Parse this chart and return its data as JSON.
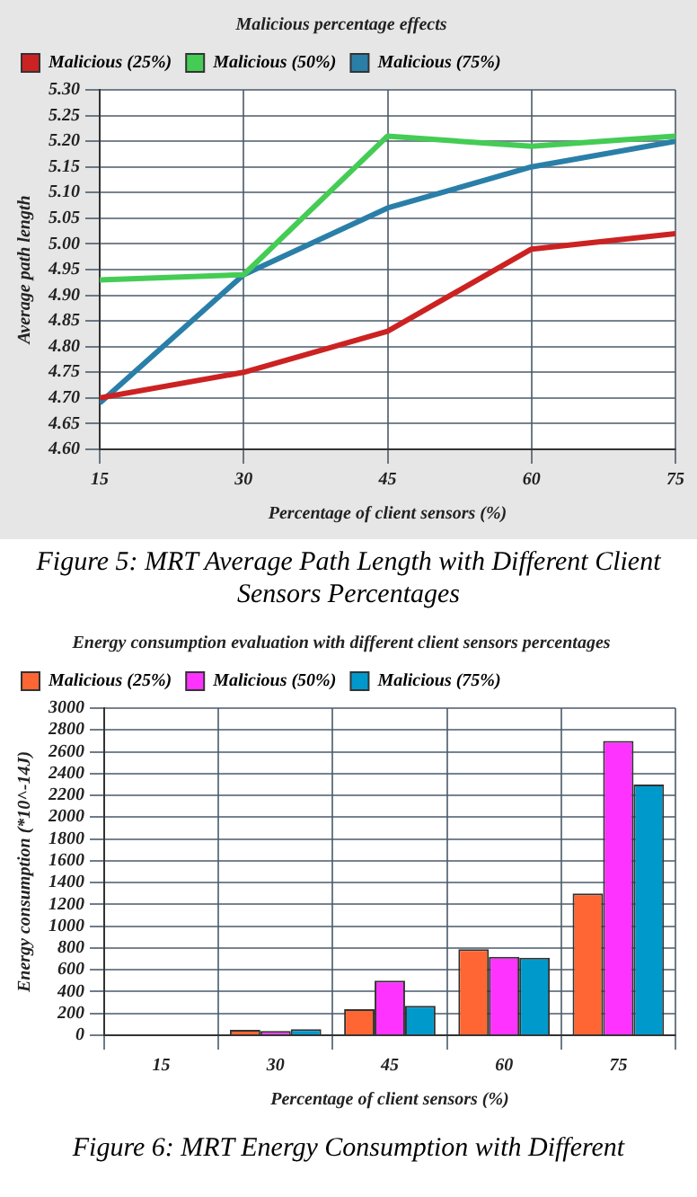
{
  "chart_data": [
    {
      "type": "line",
      "title": "Malicious percentage effects",
      "xlabel": "Percentage of client sensors (%)",
      "ylabel": "Average path length",
      "x": [
        15,
        30,
        45,
        60,
        75
      ],
      "xlim": [
        15,
        75
      ],
      "xticks": [
        15,
        30,
        45,
        60,
        75
      ],
      "ylim": [
        4.6,
        5.3
      ],
      "yticks": [
        {
          "value": 4.6,
          "label": "4.60"
        },
        {
          "value": 4.65,
          "label": "4.65"
        },
        {
          "value": 4.7,
          "label": "4.70"
        },
        {
          "value": 4.75,
          "label": "4.75"
        },
        {
          "value": 4.8,
          "label": "4.80"
        },
        {
          "value": 4.85,
          "label": "4.85"
        },
        {
          "value": 4.9,
          "label": "4.90"
        },
        {
          "value": 4.95,
          "label": "4.95"
        },
        {
          "value": 5.0,
          "label": "5.00"
        },
        {
          "value": 5.05,
          "label": "5.05"
        },
        {
          "value": 5.1,
          "label": "5.10"
        },
        {
          "value": 5.15,
          "label": "5.15"
        },
        {
          "value": 5.2,
          "label": "5.20"
        },
        {
          "value": 5.25,
          "label": "5.25"
        },
        {
          "value": 5.3,
          "label": "5.30"
        }
      ],
      "grid": true,
      "legend": "top left",
      "marker": "none",
      "series": [
        {
          "name": "Malicious (25%)",
          "color": "#cc2222",
          "values": [
            4.7,
            4.75,
            4.83,
            4.99,
            5.02
          ]
        },
        {
          "name": "Malicious (50%)",
          "color": "#44cc55",
          "values": [
            4.93,
            4.94,
            5.21,
            5.19,
            5.21
          ]
        },
        {
          "name": "Malicious (75%)",
          "color": "#2a7fa8",
          "values": [
            4.69,
            4.94,
            5.07,
            5.15,
            5.2
          ]
        }
      ],
      "annotations": [
        "Figure 5: MRT Average Path Length with Different Client Sensors Percentages"
      ]
    },
    {
      "type": "bar",
      "title": "Energy consumption evaluation with different client sensors percentages",
      "xlabel": "Percentage of client sensors (%)",
      "ylabel": "Energy consumption (*10^-14J)",
      "categories": [
        "15",
        "30",
        "45",
        "60",
        "75"
      ],
      "ylim": [
        0,
        3000
      ],
      "yticks": [
        0,
        200,
        400,
        600,
        800,
        1000,
        1200,
        1400,
        1600,
        1800,
        2000,
        2200,
        2400,
        2600,
        2800,
        3000
      ],
      "grid": true,
      "legend": "top left",
      "series": [
        {
          "name": "Malicious (25%)",
          "color": "#ff6633",
          "values": [
            0,
            50,
            240,
            790,
            1300
          ]
        },
        {
          "name": "Malicious (50%)",
          "color": "#ff33ff",
          "values": [
            0,
            40,
            500,
            720,
            2700
          ]
        },
        {
          "name": "Malicious (75%)",
          "color": "#0099cc",
          "values": [
            0,
            55,
            270,
            710,
            2300
          ]
        }
      ],
      "annotations": [
        "Figure 6: MRT Energy Consumption with Different"
      ]
    }
  ]
}
